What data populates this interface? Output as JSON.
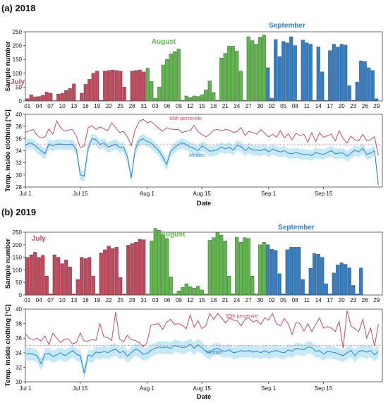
{
  "colors": {
    "july": "#c8455b",
    "august": "#5cba47",
    "september": "#2f7fc9",
    "p95": "#c24d66",
    "median": "#2f7fc9",
    "band": "#bfe7f6",
    "ref_line": "#d98c8c"
  },
  "chart_data": [
    {
      "type": "bar",
      "panel": "(a) 2018",
      "ylabel": "Sample number",
      "ylim": [
        0,
        250
      ],
      "yticks": [
        0,
        50,
        100,
        150,
        200,
        250
      ],
      "day_labels": [
        "01",
        "04",
        "07",
        "10",
        "13",
        "16",
        "19",
        "22",
        "25",
        "28",
        "31",
        "03",
        "06",
        "09",
        "12",
        "15",
        "18",
        "21",
        "24",
        "27",
        "30",
        "02",
        "05",
        "08",
        "11",
        "14",
        "17",
        "20",
        "23",
        "26",
        "29"
      ],
      "month_labels": [
        "July",
        "August",
        "September"
      ],
      "values": [
        8,
        22,
        15,
        16,
        20,
        32,
        28,
        1,
        25,
        28,
        38,
        45,
        62,
        1,
        28,
        60,
        78,
        100,
        108,
        2,
        108,
        110,
        112,
        110,
        108,
        50,
        1,
        108,
        110,
        112,
        105,
        118,
        70,
        10,
        50,
        130,
        150,
        170,
        178,
        188,
        2,
        18,
        12,
        18,
        16,
        22,
        40,
        72,
        30,
        2,
        155,
        172,
        198,
        198,
        180,
        108,
        2,
        232,
        218,
        205,
        230,
        238,
        120,
        10,
        222,
        160,
        215,
        210,
        232,
        200,
        2,
        220,
        210,
        205,
        2,
        195,
        105,
        2,
        182,
        205,
        195,
        205,
        202,
        55,
        2,
        68,
        145,
        142,
        120,
        110,
        8
      ]
    },
    {
      "type": "line",
      "panel": "(a) 2018",
      "ylabel": "Temp. inside clothing [°C]",
      "xlabel": "Date",
      "ylim": [
        28,
        40
      ],
      "yticks": [
        28,
        30,
        32,
        34,
        36,
        38,
        40
      ],
      "x_tick_labels": [
        "Jul 1",
        "Jul 15",
        "Aug 1",
        "Aug 15",
        "Sep 1",
        "Sep 15"
      ],
      "reference_value": 35,
      "series": [
        {
          "name": "95th percentile",
          "values": [
            37.0,
            37.3,
            37.5,
            36.5,
            36.1,
            36.3,
            37.6,
            36.7,
            38.9,
            37.8,
            37.2,
            37.4,
            37.5,
            36.4,
            34.5,
            34.8,
            37.8,
            38.1,
            37.5,
            37.9,
            37.6,
            37.3,
            38.6,
            37.8,
            37.0,
            37.2,
            36.3,
            34.8,
            37.5,
            38.8,
            39.2,
            38.6,
            38.8,
            38.3,
            37.7,
            37.2,
            37.8,
            37.6,
            37.5,
            37.5,
            37.0,
            37.2,
            37.3,
            38.2,
            37.1,
            36.7,
            36.3,
            36.7,
            37.4,
            37.5,
            37.3,
            37.5,
            37.4,
            37.0,
            37.2,
            37.8,
            36.5,
            37.2,
            37.0,
            36.7,
            37.5,
            36.9,
            36.3,
            36.7,
            36.2,
            37.3,
            36.1,
            36.8,
            35.8,
            36.9,
            36.5,
            36.7,
            35.4,
            37.0,
            35.5,
            37.0,
            36.2,
            36.5,
            36.7,
            35.6,
            37.3,
            36.0,
            35.3,
            36.4,
            35.8,
            35.6,
            36.7,
            35.7,
            35.8,
            36.3,
            33.2
          ]
        },
        {
          "name": "Median",
          "values": [
            34.8,
            35.3,
            35.1,
            34.5,
            34.0,
            33.5,
            35.1,
            34.8,
            35.1,
            35.1,
            35.0,
            35.0,
            35.1,
            34.2,
            30.0,
            29.8,
            34.5,
            36.0,
            35.8,
            35.0,
            35.3,
            34.6,
            34.8,
            35.1,
            34.5,
            34.6,
            33.0,
            29.5,
            34.3,
            35.6,
            36.0,
            35.5,
            35.3,
            34.6,
            34.0,
            33.0,
            31.7,
            33.8,
            34.5,
            35.0,
            35.3,
            35.0,
            34.6,
            34.4,
            34.0,
            34.8,
            34.4,
            33.9,
            34.0,
            34.2,
            34.6,
            34.3,
            34.6,
            34.1,
            34.9,
            34.7,
            34.0,
            34.5,
            34.1,
            34.1,
            34.0,
            34.3,
            33.8,
            34.3,
            34.0,
            33.8,
            34.0,
            33.6,
            33.5,
            33.7,
            33.5,
            33.4,
            33.4,
            33.2,
            33.7,
            33.5,
            33.4,
            33.7,
            34.0,
            33.5,
            33.6,
            33.6,
            33.1,
            33.6,
            34.1,
            33.8,
            34.4,
            33.4,
            33.6,
            34.0,
            28.3
          ]
        }
      ],
      "annotations": [
        "95th percentile",
        "Median"
      ]
    },
    {
      "type": "bar",
      "panel": "(b) 2019",
      "ylabel": "Sample number",
      "ylim": [
        0,
        250
      ],
      "yticks": [
        0,
        50,
        100,
        150,
        200,
        250
      ],
      "day_labels": [
        "01",
        "04",
        "07",
        "10",
        "13",
        "16",
        "19",
        "22",
        "25",
        "28",
        "31",
        "03",
        "06",
        "09",
        "12",
        "15",
        "18",
        "21",
        "24",
        "27",
        "30",
        "02",
        "05",
        "08",
        "11",
        "14",
        "17",
        "20",
        "23",
        "26",
        "29"
      ],
      "month_labels": [
        "July",
        "August",
        "September"
      ],
      "values": [
        150,
        160,
        170,
        150,
        158,
        75,
        5,
        160,
        150,
        125,
        140,
        112,
        5,
        62,
        150,
        145,
        150,
        75,
        5,
        168,
        180,
        195,
        185,
        190,
        70,
        5,
        198,
        205,
        210,
        222,
        220,
        5,
        215,
        265,
        258,
        240,
        225,
        72,
        5,
        16,
        30,
        45,
        33,
        28,
        35,
        20,
        5,
        218,
        228,
        250,
        238,
        215,
        75,
        5,
        230,
        210,
        228,
        225,
        75,
        5,
        200,
        210,
        200,
        182,
        178,
        85,
        5,
        180,
        190,
        190,
        190,
        62,
        5,
        106,
        165,
        162,
        150,
        45,
        5,
        88,
        120,
        128,
        122,
        108,
        38,
        5,
        108
      ]
    },
    {
      "type": "line",
      "panel": "(b) 2019",
      "ylabel": "Temp. inside clothing [°C]",
      "xlabel": "Date",
      "ylim": [
        30,
        40
      ],
      "yticks": [
        30,
        32,
        34,
        36,
        38,
        40
      ],
      "x_tick_labels": [
        "Jul 1",
        "Jul 15",
        "Aug 1",
        "Aug 15",
        "Sep 1",
        "Sep 15"
      ],
      "reference_value": 35,
      "series": [
        {
          "name": "95th percentile",
          "values": [
            36.6,
            36.0,
            35.8,
            36.0,
            35.6,
            36.3,
            35.1,
            36.7,
            36.0,
            35.4,
            35.9,
            35.9,
            35.2,
            35.4,
            36.7,
            35.6,
            35.6,
            35.8,
            35.7,
            38.0,
            36.2,
            36.1,
            35.7,
            39.6,
            35.9,
            35.5,
            36.4,
            35.8,
            35.7,
            35.4,
            34.8,
            35.4,
            37.8,
            37.9,
            38.0,
            37.2,
            38.2,
            38.6,
            37.9,
            38.0,
            37.8,
            37.3,
            39.2,
            37.5,
            38.4,
            37.3,
            37.7,
            39.4,
            38.6,
            39.4,
            38.8,
            38.1,
            38.8,
            38.5,
            38.4,
            37.7,
            38.6,
            38.8,
            38.2,
            38.5,
            37.9,
            38.8,
            38.5,
            39.4,
            38.0,
            37.7,
            38.7,
            38.0,
            36.5,
            38.2,
            38.0,
            37.0,
            38.0,
            36.9,
            37.9,
            38.8,
            37.4,
            37.6,
            37.4,
            36.9,
            38.3,
            34.6,
            39.8,
            37.7,
            37.3,
            36.9,
            38.6,
            36.0,
            37.4,
            34.9,
            37.9
          ]
        },
        {
          "name": "Median",
          "values": [
            33.8,
            33.9,
            33.8,
            33.6,
            32.5,
            33.8,
            33.9,
            33.5,
            33.7,
            34.0,
            33.6,
            33.9,
            34.3,
            33.8,
            33.6,
            31.2,
            33.7,
            33.5,
            34.1,
            34.0,
            34.2,
            34.0,
            34.3,
            34.5,
            34.0,
            34.2,
            33.5,
            34.0,
            34.5,
            34.3,
            33.8,
            33.9,
            34.3,
            34.6,
            34.8,
            34.7,
            34.8,
            34.6,
            35.0,
            34.9,
            34.7,
            34.8,
            35.2,
            34.6,
            35.1,
            34.7,
            34.2,
            34.0,
            34.5,
            34.6,
            34.3,
            34.2,
            34.4,
            34.0,
            34.1,
            34.3,
            34.2,
            34.3,
            34.1,
            34.2,
            34.0,
            34.3,
            34.0,
            34.2,
            34.3,
            34.1,
            34.0,
            34.4,
            34.2,
            34.6,
            34.5,
            34.4,
            34.8,
            34.7,
            34.2,
            34.3,
            33.8,
            34.2,
            34.1,
            34.0,
            33.8,
            33.6,
            34.0,
            34.3,
            33.6,
            34.2,
            34.3,
            34.1,
            34.3,
            33.7,
            34.2
          ]
        }
      ],
      "annotations": [
        "95th percentile",
        "Median"
      ]
    }
  ]
}
